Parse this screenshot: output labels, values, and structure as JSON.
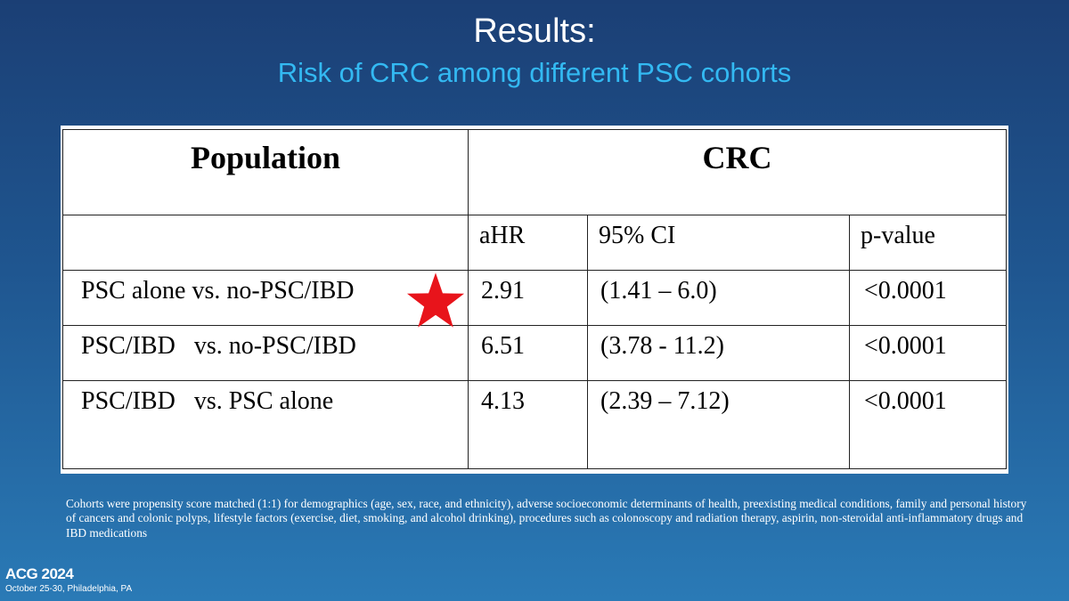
{
  "slide": {
    "title": "Results:",
    "subtitle": "Risk of CRC among different PSC cohorts"
  },
  "table": {
    "header": {
      "population": "Population",
      "outcome": "CRC"
    },
    "subheader": {
      "ahr": "aHR",
      "ci": "95% CI",
      "pvalue": "p-value"
    },
    "rows": [
      {
        "population": "PSC alone vs. no-PSC/IBD",
        "ahr": "2.91",
        "ci": "(1.41 – 6.0)",
        "pvalue": "<0.0001",
        "highlighted": true
      },
      {
        "population": "PSC/IBD   vs. no-PSC/IBD",
        "ahr": "6.51",
        "ci": "(3.78 - 11.2)",
        "pvalue": "<0.0001"
      },
      {
        "population": "PSC/IBD   vs. PSC alone",
        "ahr": "4.13",
        "ci": "(2.39 – 7.12)",
        "pvalue": "<0.0001"
      }
    ]
  },
  "highlight_star": {
    "icon": "star-icon",
    "color": "#e8141b"
  },
  "footnote": "Cohorts were propensity score matched (1:1) for demographics (age, sex, race, and ethnicity), adverse socioeconomic determinants of health, preexisting medical conditions, family and personal history of cancers and colonic polyps, lifestyle factors (exercise, diet, smoking, and alcohol drinking), procedures such as colonoscopy  and radiation therapy, aspirin, non-steroidal anti-inflammatory drugs and IBD medications",
  "conference": {
    "logo_text": "ACG 2024",
    "dates_location": "October 25-30, Philadelphia, PA"
  },
  "colors": {
    "background_top": "#1b3f75",
    "background_bottom": "#2a7ab6",
    "subtitle": "#33b9f2",
    "title": "#ffffff"
  }
}
